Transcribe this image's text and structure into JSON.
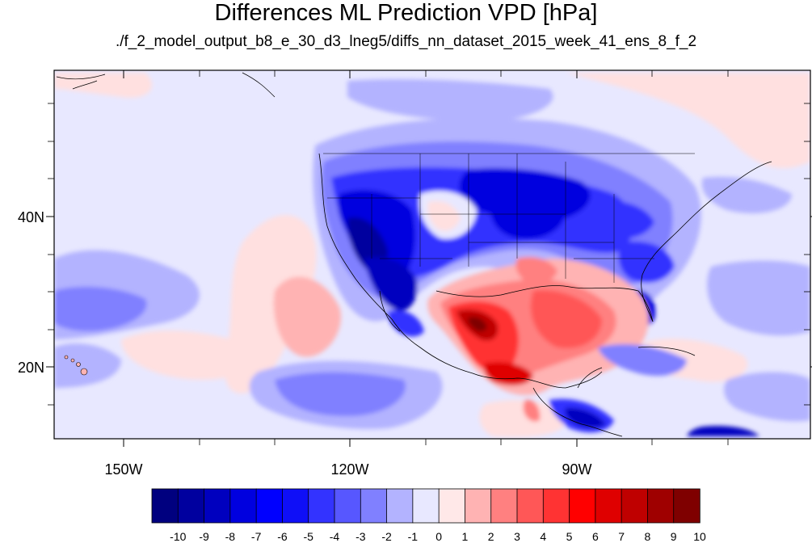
{
  "title": "Differences ML Prediction VPD [hPa]",
  "subtitle": "./f_2_model_output_b8_e_30_d3_lneg5/diffs_nn_dataset_2015_week_41_ens_8_f_2",
  "lat_labels": [
    "40N",
    "20N"
  ],
  "lon_labels": [
    "150W",
    "120W",
    "90W"
  ],
  "colorbar": {
    "labels": [
      "-10",
      "-9",
      "-8",
      "-7",
      "-6",
      "-5",
      "-4",
      "-3",
      "-2",
      "-1",
      "0",
      "1",
      "2",
      "3",
      "4",
      "5",
      "6",
      "7",
      "8",
      "9",
      "10"
    ],
    "colors": [
      "#00007f",
      "#00009f",
      "#0000bf",
      "#0000df",
      "#0000ff",
      "#0f0ff7",
      "#3333ff",
      "#5757ff",
      "#8080ff",
      "#b3b3ff",
      "#e8e8ff",
      "#ffe8e8",
      "#ffb3b3",
      "#ff8080",
      "#ff5757",
      "#ff3333",
      "#ff0000",
      "#df0000",
      "#bf0000",
      "#9f0000",
      "#7f0000"
    ]
  },
  "palette": {
    "ocean_bg": "#e8e8ff",
    "light_blue": "#b3b3ff",
    "mid_blue": "#8080ff",
    "blue": "#3333ff",
    "dark_blue": "#0000bf",
    "light_red": "#ffe0e0",
    "pink": "#ffb3b3",
    "red": "#ff5757",
    "dark_red": "#df0000"
  }
}
